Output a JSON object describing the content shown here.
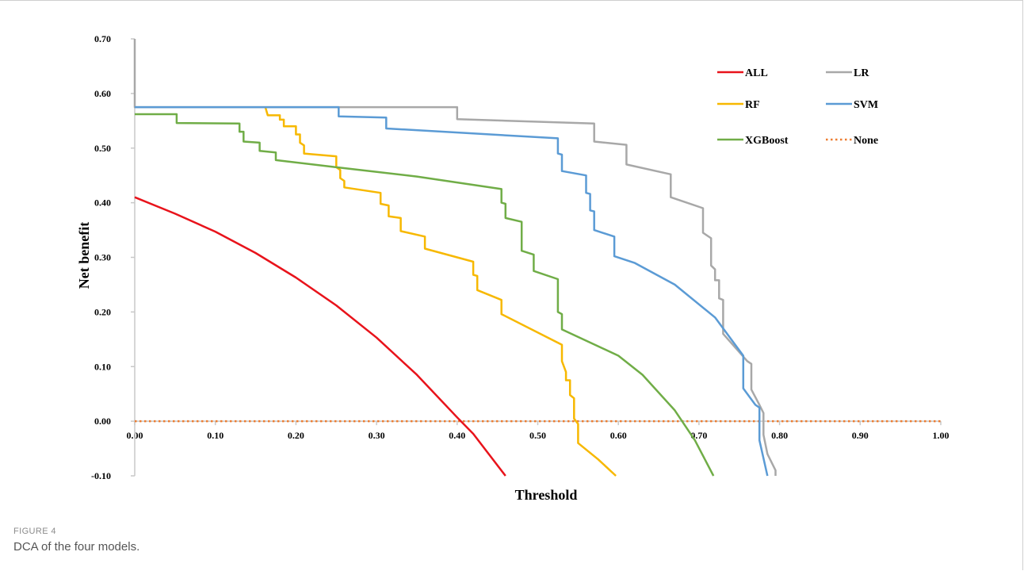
{
  "figure": {
    "label": "FIGURE 4",
    "caption": "DCA of the four models."
  },
  "chart_data": {
    "type": "line",
    "xlabel": "Threshold",
    "ylabel": "Net benefit",
    "xlim": [
      0,
      1.0
    ],
    "ylim": [
      -0.1,
      0.7
    ],
    "x_ticks": [
      "0.00",
      "0.10",
      "0.20",
      "0.30",
      "0.40",
      "0.50",
      "0.60",
      "0.70",
      "0.80",
      "0.90",
      "1.00"
    ],
    "y_ticks": [
      "0.70",
      "0.60",
      "0.50",
      "0.40",
      "0.30",
      "0.20",
      "0.10",
      "0.00",
      "-0.10"
    ],
    "grid": false,
    "legend_position": "top-right",
    "series": [
      {
        "name": "ALL",
        "color": "#e8131b",
        "dash": "solid",
        "width": 2.5,
        "points": [
          [
            0,
            0.41
          ],
          [
            0.05,
            0.38
          ],
          [
            0.1,
            0.347
          ],
          [
            0.15,
            0.308
          ],
          [
            0.2,
            0.263
          ],
          [
            0.25,
            0.212
          ],
          [
            0.3,
            0.153
          ],
          [
            0.35,
            0.085
          ],
          [
            0.4,
            0.007
          ],
          [
            0.42,
            -0.023
          ],
          [
            0.46,
            -0.1
          ]
        ]
      },
      {
        "name": "LR",
        "color": "#a8a8a8",
        "dash": "solid",
        "width": 2.5,
        "points": [
          [
            0,
            0.7
          ],
          [
            0,
            0.575
          ],
          [
            0.4,
            0.575
          ],
          [
            0.4,
            0.553
          ],
          [
            0.57,
            0.545
          ],
          [
            0.57,
            0.512
          ],
          [
            0.61,
            0.506
          ],
          [
            0.61,
            0.47
          ],
          [
            0.665,
            0.452
          ],
          [
            0.665,
            0.41
          ],
          [
            0.705,
            0.39
          ],
          [
            0.705,
            0.345
          ],
          [
            0.715,
            0.335
          ],
          [
            0.715,
            0.285
          ],
          [
            0.72,
            0.278
          ],
          [
            0.72,
            0.258
          ],
          [
            0.725,
            0.258
          ],
          [
            0.725,
            0.225
          ],
          [
            0.73,
            0.222
          ],
          [
            0.73,
            0.16
          ],
          [
            0.76,
            0.11
          ],
          [
            0.765,
            0.105
          ],
          [
            0.765,
            0.058
          ],
          [
            0.775,
            0.03
          ],
          [
            0.78,
            0.015
          ],
          [
            0.78,
            -0.025
          ],
          [
            0.785,
            -0.06
          ],
          [
            0.795,
            -0.09
          ],
          [
            0.795,
            -0.1
          ]
        ]
      },
      {
        "name": "RF",
        "color": "#f7b800",
        "dash": "solid",
        "width": 2.5,
        "points": [
          [
            0.162,
            0.575
          ],
          [
            0.165,
            0.56
          ],
          [
            0.18,
            0.56
          ],
          [
            0.18,
            0.552
          ],
          [
            0.185,
            0.552
          ],
          [
            0.185,
            0.54
          ],
          [
            0.2,
            0.54
          ],
          [
            0.2,
            0.525
          ],
          [
            0.205,
            0.525
          ],
          [
            0.205,
            0.51
          ],
          [
            0.21,
            0.505
          ],
          [
            0.21,
            0.49
          ],
          [
            0.25,
            0.485
          ],
          [
            0.25,
            0.465
          ],
          [
            0.255,
            0.46
          ],
          [
            0.255,
            0.445
          ],
          [
            0.26,
            0.44
          ],
          [
            0.26,
            0.428
          ],
          [
            0.305,
            0.418
          ],
          [
            0.305,
            0.398
          ],
          [
            0.315,
            0.395
          ],
          [
            0.315,
            0.375
          ],
          [
            0.33,
            0.372
          ],
          [
            0.33,
            0.348
          ],
          [
            0.36,
            0.338
          ],
          [
            0.36,
            0.316
          ],
          [
            0.42,
            0.292
          ],
          [
            0.42,
            0.268
          ],
          [
            0.425,
            0.266
          ],
          [
            0.425,
            0.24
          ],
          [
            0.455,
            0.222
          ],
          [
            0.455,
            0.196
          ],
          [
            0.53,
            0.14
          ],
          [
            0.53,
            0.11
          ],
          [
            0.535,
            0.09
          ],
          [
            0.535,
            0.075
          ],
          [
            0.54,
            0.075
          ],
          [
            0.54,
            0.048
          ],
          [
            0.545,
            0.042
          ],
          [
            0.545,
            0.005
          ],
          [
            0.55,
            -0.005
          ],
          [
            0.55,
            -0.04
          ],
          [
            0.575,
            -0.07
          ],
          [
            0.597,
            -0.1
          ]
        ]
      },
      {
        "name": "SVM",
        "color": "#5b9bd5",
        "dash": "solid",
        "width": 2.5,
        "points": [
          [
            0,
            0.575
          ],
          [
            0.253,
            0.575
          ],
          [
            0.253,
            0.558
          ],
          [
            0.312,
            0.556
          ],
          [
            0.312,
            0.536
          ],
          [
            0.525,
            0.518
          ],
          [
            0.525,
            0.49
          ],
          [
            0.53,
            0.488
          ],
          [
            0.53,
            0.458
          ],
          [
            0.56,
            0.45
          ],
          [
            0.56,
            0.418
          ],
          [
            0.565,
            0.416
          ],
          [
            0.565,
            0.386
          ],
          [
            0.57,
            0.384
          ],
          [
            0.57,
            0.35
          ],
          [
            0.595,
            0.338
          ],
          [
            0.595,
            0.302
          ],
          [
            0.62,
            0.29
          ],
          [
            0.67,
            0.25
          ],
          [
            0.72,
            0.19
          ],
          [
            0.755,
            0.12
          ],
          [
            0.755,
            0.06
          ],
          [
            0.77,
            0.03
          ],
          [
            0.775,
            0.025
          ],
          [
            0.775,
            -0.035
          ],
          [
            0.785,
            -0.1
          ]
        ]
      },
      {
        "name": "XGBoost",
        "color": "#70ad47",
        "dash": "solid",
        "width": 2.5,
        "points": [
          [
            0,
            0.562
          ],
          [
            0.052,
            0.562
          ],
          [
            0.052,
            0.546
          ],
          [
            0.13,
            0.545
          ],
          [
            0.13,
            0.53
          ],
          [
            0.135,
            0.53
          ],
          [
            0.135,
            0.512
          ],
          [
            0.155,
            0.51
          ],
          [
            0.155,
            0.495
          ],
          [
            0.175,
            0.492
          ],
          [
            0.175,
            0.478
          ],
          [
            0.25,
            0.465
          ],
          [
            0.35,
            0.448
          ],
          [
            0.455,
            0.425
          ],
          [
            0.455,
            0.4
          ],
          [
            0.46,
            0.398
          ],
          [
            0.46,
            0.372
          ],
          [
            0.48,
            0.365
          ],
          [
            0.48,
            0.312
          ],
          [
            0.495,
            0.305
          ],
          [
            0.495,
            0.275
          ],
          [
            0.525,
            0.26
          ],
          [
            0.525,
            0.2
          ],
          [
            0.53,
            0.196
          ],
          [
            0.53,
            0.168
          ],
          [
            0.6,
            0.12
          ],
          [
            0.63,
            0.085
          ],
          [
            0.67,
            0.02
          ],
          [
            0.695,
            -0.035
          ],
          [
            0.718,
            -0.1
          ]
        ]
      },
      {
        "name": "None",
        "color": "#ed7d31",
        "dash": "dotted",
        "width": 2.5,
        "points": [
          [
            0,
            0
          ],
          [
            1.0,
            0
          ]
        ]
      }
    ]
  }
}
